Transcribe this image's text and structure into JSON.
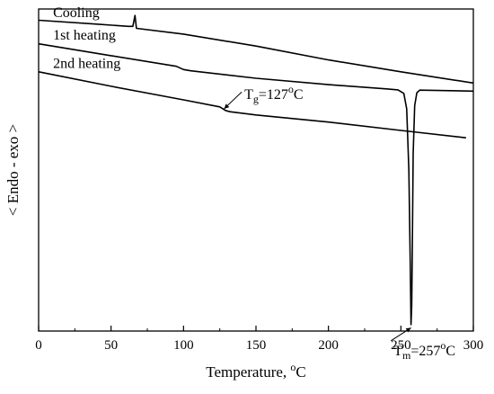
{
  "chart_data": {
    "type": "line",
    "title": "",
    "xlabel": "Temperature, ",
    "xlabel_unit_sup": "o",
    "xlabel_unit": "C",
    "ylabel": "< Endo - exo >",
    "xlim": [
      0,
      300
    ],
    "x_ticks": [
      0,
      50,
      100,
      150,
      200,
      250,
      300
    ],
    "y_ticks_labeled": false,
    "grid": false,
    "series": [
      {
        "name": "Cooling",
        "points": [
          [
            0,
            0.965
          ],
          [
            40,
            0.953
          ],
          [
            62,
            0.946
          ],
          [
            65,
            0.946
          ],
          [
            66.5,
            0.98
          ],
          [
            67.5,
            0.94
          ],
          [
            100,
            0.922
          ],
          [
            150,
            0.885
          ],
          [
            200,
            0.842
          ],
          [
            250,
            0.805
          ],
          [
            300,
            0.77
          ]
        ]
      },
      {
        "name": "1st heating",
        "points": [
          [
            0,
            0.892
          ],
          [
            50,
            0.855
          ],
          [
            95,
            0.822
          ],
          [
            100,
            0.812
          ],
          [
            105,
            0.808
          ],
          [
            150,
            0.785
          ],
          [
            200,
            0.765
          ],
          [
            240,
            0.752
          ],
          [
            248,
            0.749
          ],
          [
            252,
            0.738
          ],
          [
            254,
            0.69
          ],
          [
            255.5,
            0.5
          ],
          [
            256.5,
            0.2
          ],
          [
            257,
            0.02
          ],
          [
            257.5,
            0.08
          ],
          [
            258,
            0.3
          ],
          [
            258.5,
            0.55
          ],
          [
            259.5,
            0.7
          ],
          [
            261,
            0.74
          ],
          [
            263,
            0.748
          ],
          [
            300,
            0.745
          ]
        ]
      },
      {
        "name": "2nd heating",
        "points": [
          [
            0,
            0.805
          ],
          [
            50,
            0.76
          ],
          [
            100,
            0.718
          ],
          [
            125,
            0.696
          ],
          [
            129,
            0.685
          ],
          [
            132,
            0.681
          ],
          [
            150,
            0.671
          ],
          [
            200,
            0.649
          ],
          [
            250,
            0.623
          ],
          [
            295,
            0.6
          ]
        ]
      }
    ],
    "annotations": [
      {
        "label": "Cooling",
        "x": 10,
        "y": 0.975
      },
      {
        "label": "1st heating",
        "x": 10,
        "y": 0.905
      },
      {
        "label": "2nd heating",
        "x": 10,
        "y": 0.817
      },
      {
        "label_main": "T",
        "label_sub": "g",
        "label_rest": "=127",
        "label_sup": "o",
        "label_tail": "C",
        "x": 142,
        "y": 0.72,
        "arrow_to": [
          128,
          0.69
        ]
      },
      {
        "label_main": "T",
        "label_sub": "m",
        "label_rest": "=257",
        "label_sup": "o",
        "label_tail": "C",
        "x": 245,
        "y": -0.075,
        "arrow_to": [
          257,
          0.01
        ]
      }
    ]
  }
}
